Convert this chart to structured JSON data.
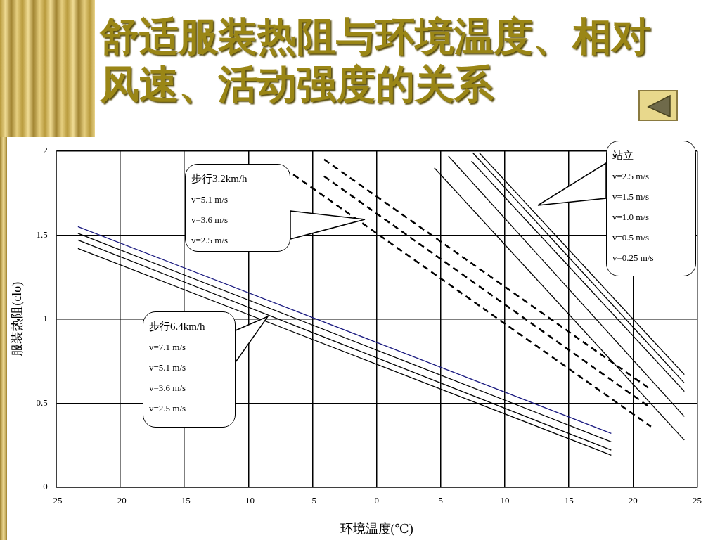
{
  "chart_data": {
    "type": "line",
    "title": "舒适服装热阻与环境温度、相对风速、活动强度的关系",
    "xlabel": "环境温度(℃)",
    "ylabel": "服装热阻(clo)",
    "xlim": [
      -25,
      25
    ],
    "xticks": [
      -25,
      -20,
      -15,
      -10,
      -5,
      0,
      5,
      10,
      15,
      20,
      25
    ],
    "ylim": [
      0,
      2
    ],
    "yticks": [
      0,
      0.5,
      1,
      1.5,
      2
    ],
    "grid": true,
    "legend": false,
    "marker": "none",
    "annotations": [
      "步行3.2km/h\nv=5.1 m/s\nv=3.6 m/s\nv=2.5 m/s",
      "步行6.4km/h\nv=7.1 m/s\nv=5.1 m/s\nv=3.6 m/s\nv=2.5 m/s",
      "站立\nv=2.5 m/s\nv=1.5 m/s\nv=1.0 m/s\nv=0.5 m/s\nv=0.25 m/s"
    ],
    "series": [
      {
        "color": "#1a1a80",
        "x": [
          -23.3,
          18.3
        ],
        "values": [
          1.55,
          0.32
        ],
        "line_style": "solid"
      },
      {
        "color": "#000000",
        "x": [
          -23.3,
          18.3
        ],
        "values": [
          1.51,
          0.27
        ],
        "line_style": "solid"
      },
      {
        "color": "#000000",
        "x": [
          -23.3,
          18.3
        ],
        "values": [
          1.47,
          0.22
        ],
        "line_style": "solid"
      },
      {
        "color": "#000000",
        "x": [
          -23.3,
          18.3
        ],
        "values": [
          1.42,
          0.19
        ],
        "line_style": "solid"
      },
      {
        "color": "#000000",
        "x": [
          -4.1,
          21.4
        ],
        "values": [
          1.95,
          0.58
        ],
        "line_style": "dashed"
      },
      {
        "color": "#000000",
        "x": [
          -4.1,
          21.4
        ],
        "values": [
          1.85,
          0.47
        ],
        "line_style": "dashed"
      },
      {
        "color": "#000000",
        "x": [
          -6.5,
          21.4
        ],
        "values": [
          1.86,
          0.36
        ],
        "line_style": "dashed"
      },
      {
        "color": "#000000",
        "x": [
          4.5,
          24.0
        ],
        "values": [
          1.9,
          0.28
        ],
        "line_style": "solid"
      },
      {
        "color": "#000000",
        "x": [
          5.6,
          24.0
        ],
        "values": [
          1.97,
          0.42
        ],
        "line_style": "solid"
      },
      {
        "color": "#000000",
        "x": [
          7.4,
          24.0
        ],
        "values": [
          1.94,
          0.57
        ],
        "line_style": "solid"
      },
      {
        "color": "#000000",
        "x": [
          7.5,
          24.0
        ],
        "values": [
          1.99,
          0.62
        ],
        "line_style": "solid"
      },
      {
        "color": "#000000",
        "x": [
          8.0,
          24.0
        ],
        "values": [
          1.99,
          0.67
        ],
        "line_style": "solid"
      }
    ]
  }
}
